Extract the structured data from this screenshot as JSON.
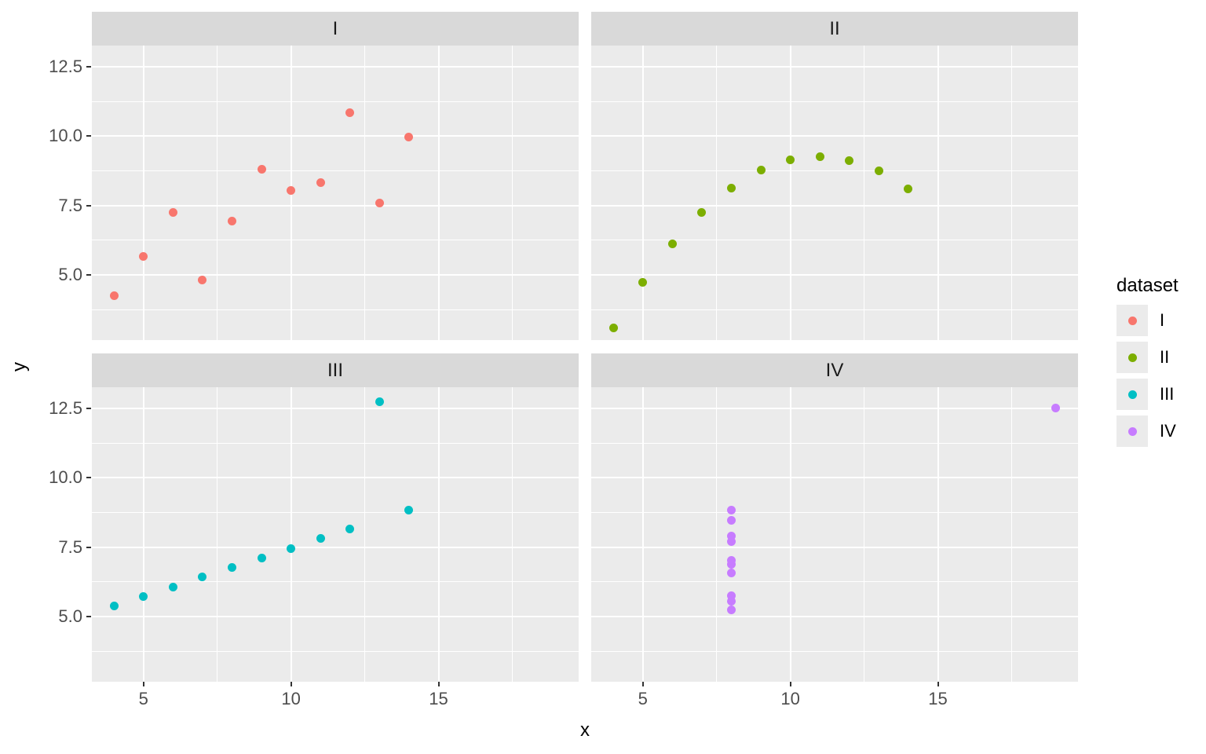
{
  "figure": {
    "background": "#FFFFFF",
    "panel_bg": "#EBEBEB",
    "strip_bg": "#D9D9D9",
    "grid_color": "#FFFFFF",
    "tick_mark_color": "#333333",
    "tick_label_color": "#4D4D4D",
    "strip_text_color": "#1A1A1A"
  },
  "legend": {
    "title": "dataset",
    "entries": [
      {
        "label": "I",
        "color": "#F8766D"
      },
      {
        "label": "II",
        "color": "#7CAE00"
      },
      {
        "label": "III",
        "color": "#00BFC4"
      },
      {
        "label": "IV",
        "color": "#C77CFF"
      }
    ]
  },
  "chart_data": {
    "type": "scatter",
    "xlabel": "x",
    "ylabel": "y",
    "grid": true,
    "legend_position": "right",
    "xlim": [
      3.25,
      19.75
    ],
    "ylim": [
      2.66,
      13.26
    ],
    "x_ticks": [
      5,
      10,
      15
    ],
    "x_tick_labels": [
      "5",
      "10",
      "15"
    ],
    "y_ticks": [
      12.5,
      10,
      7.5,
      5
    ],
    "y_tick_labels": [
      "12.5",
      "10.0",
      "7.5",
      "5.0"
    ],
    "x_minor_ticks": [
      7.5,
      12.5,
      17.5
    ],
    "y_minor_ticks": [
      11.25,
      8.75,
      6.25,
      3.75
    ],
    "facets": [
      {
        "name": "I",
        "color": "#F8766D",
        "points": [
          [
            10,
            8.04
          ],
          [
            8,
            6.95
          ],
          [
            13,
            7.58
          ],
          [
            9,
            8.81
          ],
          [
            11,
            8.33
          ],
          [
            14,
            9.96
          ],
          [
            6,
            7.24
          ],
          [
            4,
            4.26
          ],
          [
            12,
            10.84
          ],
          [
            7,
            4.82
          ],
          [
            5,
            5.68
          ]
        ]
      },
      {
        "name": "II",
        "color": "#7CAE00",
        "points": [
          [
            10,
            9.14
          ],
          [
            8,
            8.14
          ],
          [
            13,
            8.74
          ],
          [
            9,
            8.77
          ],
          [
            11,
            9.26
          ],
          [
            14,
            8.1
          ],
          [
            6,
            6.13
          ],
          [
            4,
            3.1
          ],
          [
            12,
            9.13
          ],
          [
            7,
            7.26
          ],
          [
            5,
            4.74
          ]
        ]
      },
      {
        "name": "III",
        "color": "#00BFC4",
        "points": [
          [
            10,
            7.46
          ],
          [
            8,
            6.77
          ],
          [
            13,
            12.74
          ],
          [
            9,
            7.11
          ],
          [
            11,
            7.81
          ],
          [
            14,
            8.84
          ],
          [
            6,
            6.08
          ],
          [
            4,
            5.39
          ],
          [
            12,
            8.15
          ],
          [
            7,
            6.42
          ],
          [
            5,
            5.73
          ]
        ]
      },
      {
        "name": "IV",
        "color": "#C77CFF",
        "points": [
          [
            8,
            6.58
          ],
          [
            8,
            5.76
          ],
          [
            8,
            7.71
          ],
          [
            8,
            8.84
          ],
          [
            8,
            8.47
          ],
          [
            8,
            7.04
          ],
          [
            8,
            5.25
          ],
          [
            19,
            12.5
          ],
          [
            8,
            5.56
          ],
          [
            8,
            7.91
          ],
          [
            8,
            6.89
          ]
        ]
      }
    ]
  }
}
